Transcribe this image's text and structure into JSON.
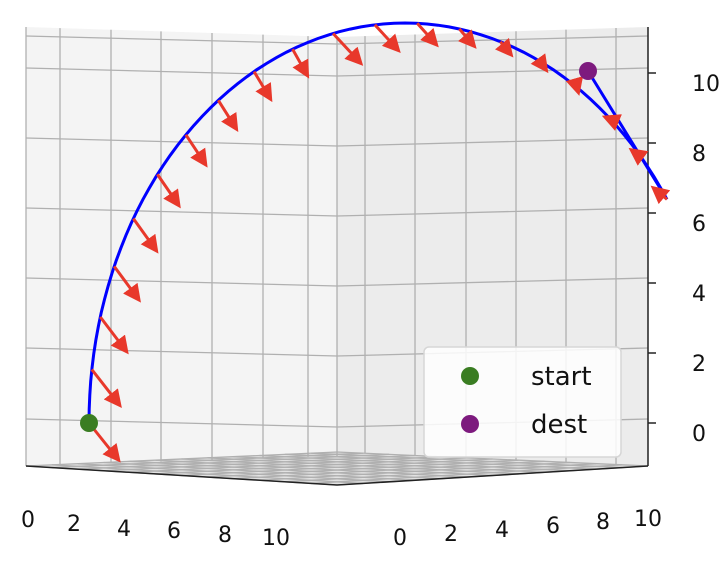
{
  "chart_data": {
    "type": "line",
    "projection": "3d",
    "title": "",
    "xlabel": "",
    "ylabel": "",
    "zlabel": "",
    "x_ticks": [
      "0",
      "2",
      "4",
      "6",
      "8",
      "10"
    ],
    "y_ticks": [
      "0",
      "2",
      "4",
      "6",
      "8",
      "10"
    ],
    "z_ticks": [
      "0",
      "2",
      "4",
      "6",
      "8",
      "10"
    ],
    "xlim": [
      0,
      11
    ],
    "ylim": [
      0,
      11
    ],
    "zlim": [
      -1,
      11
    ],
    "grid": true,
    "legend_position": "lower right",
    "colors": {
      "path": "#0000ff",
      "arrows": "#e8382b",
      "start": "#3a7d22",
      "dest": "#7d1a7e"
    },
    "path": {
      "description": "quarter-circle arc from start to dest",
      "points": [
        {
          "x": 0,
          "z": 0
        },
        {
          "x": 1.45,
          "z": 5.47
        },
        {
          "x": 5.5,
          "z": 9.53
        },
        {
          "x": 11,
          "z": 11
        },
        {
          "x": 17.5,
          "z": 9.53
        },
        {
          "x": 21.5,
          "z": 5.47
        },
        {
          "x": 23,
          "z": 0
        }
      ]
    },
    "markers": [
      {
        "name": "start",
        "x": 0,
        "y": 0,
        "z": 0
      },
      {
        "name": "dest",
        "x": 10,
        "y": 10,
        "z": 10
      }
    ],
    "arrows_count": 20
  }
}
